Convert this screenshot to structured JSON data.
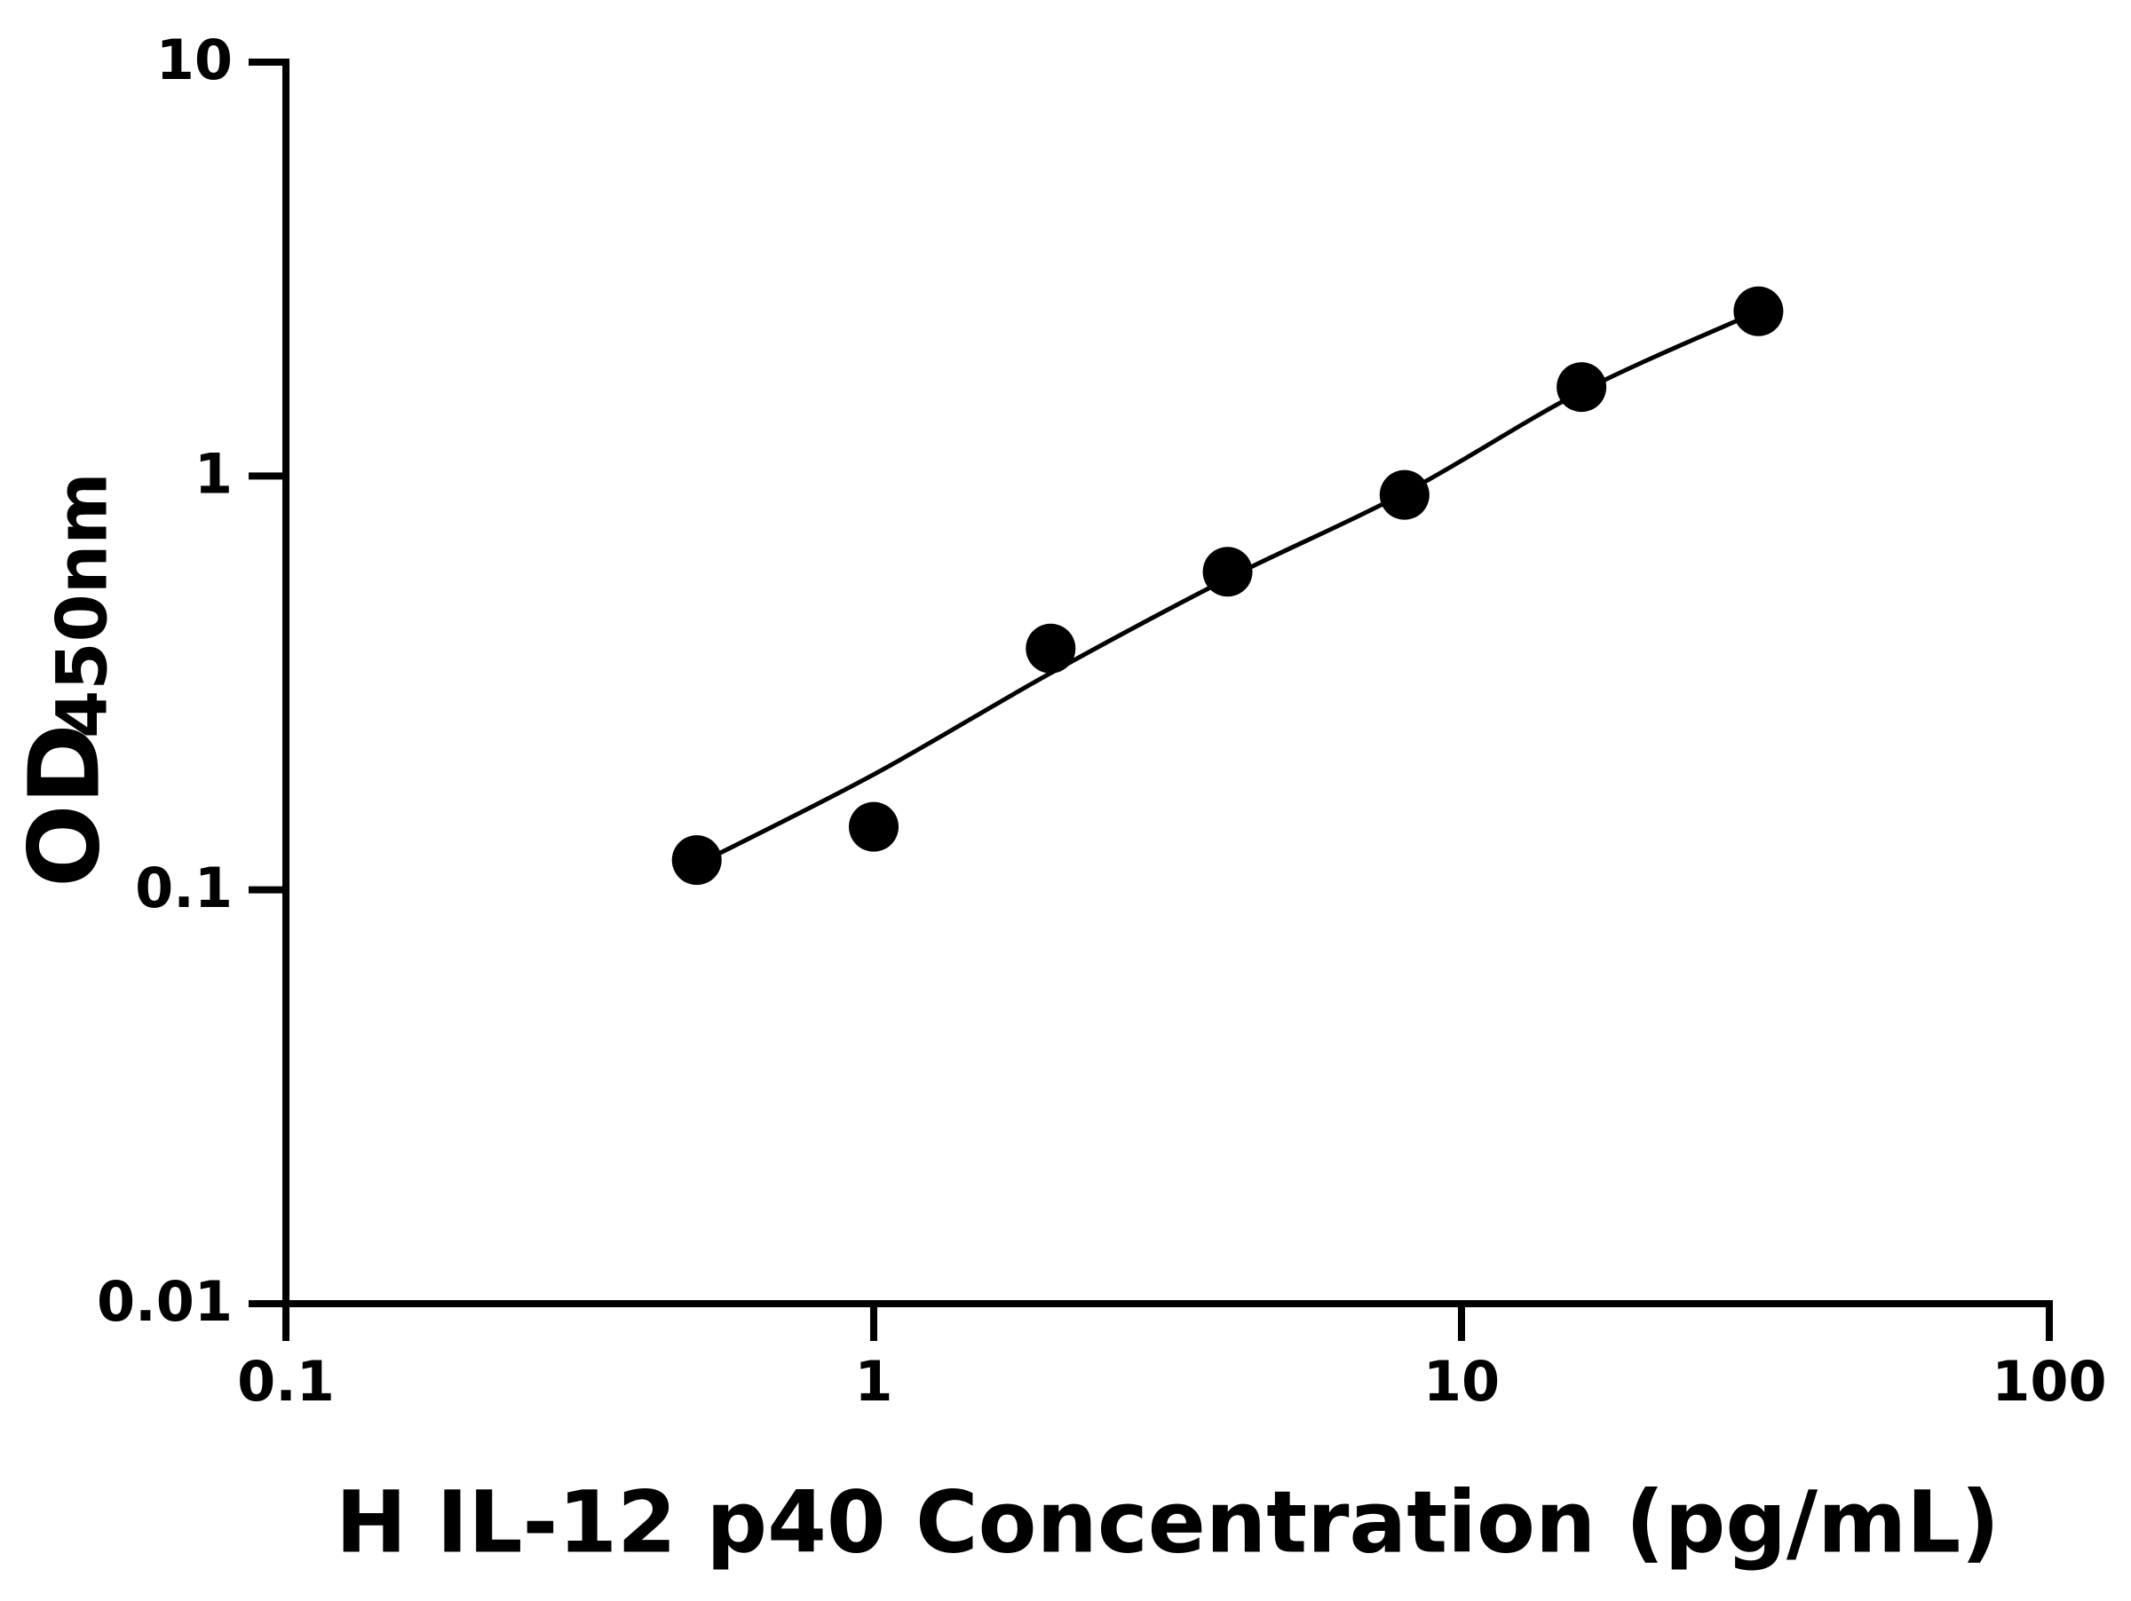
{
  "chart_data": {
    "type": "scatter",
    "x_label": "H IL-12 p40 Concentration (pg/mL)",
    "y_label": "OD",
    "y_label_sub": "450nm",
    "xscale": "log",
    "yscale": "log",
    "xlim": [
      0.1,
      100
    ],
    "ylim": [
      0.01,
      10
    ],
    "xticks": [
      0.1,
      1,
      10,
      100
    ],
    "yticks": [
      0.01,
      0.1,
      1,
      10
    ],
    "grid": false,
    "series": [
      {
        "style": "markers",
        "color": "#000000",
        "x": [
          0.5,
          1,
          2,
          4,
          8,
          16,
          32
        ],
        "values": [
          0.118,
          0.142,
          0.383,
          0.587,
          0.9,
          1.64,
          2.5
        ]
      },
      {
        "style": "line",
        "color": "#000000",
        "x": [
          0.5,
          1,
          2,
          4,
          8,
          16,
          32
        ],
        "values": [
          0.115,
          0.19,
          0.334,
          0.565,
          0.91,
          1.6,
          2.5
        ]
      }
    ]
  }
}
